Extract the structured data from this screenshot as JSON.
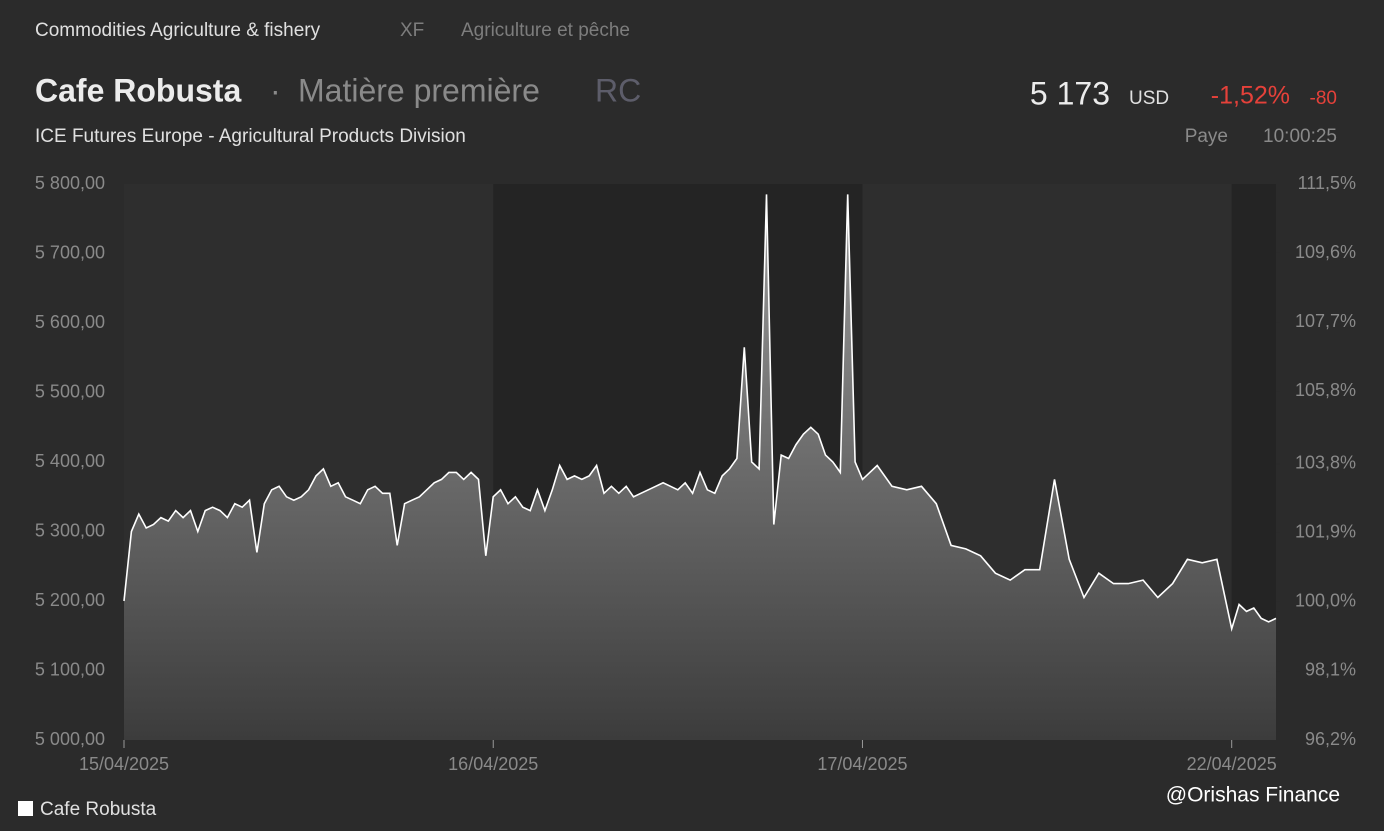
{
  "header": {
    "breadcrumb": [
      "Commodities Agriculture & fishery",
      "XF",
      "Agriculture et pêche"
    ],
    "name": "Cafe Robusta",
    "separator": "·",
    "kind": "Matière première",
    "code": "RC",
    "exchange": "ICE Futures Europe - Agricultural Products Division",
    "price": "5 173",
    "currency": "USD",
    "change_pct": "-1,52%",
    "change": "-80",
    "status": "Paye",
    "time": "10:00:25"
  },
  "watermark": "@Orishas Finance",
  "chart_data": {
    "type": "area",
    "x": [
      0.0,
      0.02,
      0.04,
      0.06,
      0.08,
      0.1,
      0.12,
      0.14,
      0.16,
      0.18,
      0.2,
      0.22,
      0.24,
      0.26,
      0.28,
      0.3,
      0.32,
      0.34,
      0.36,
      0.38,
      0.4,
      0.42,
      0.44,
      0.46,
      0.48,
      0.5,
      0.52,
      0.54,
      0.56,
      0.58,
      0.6,
      0.62,
      0.64,
      0.66,
      0.68,
      0.7,
      0.72,
      0.74,
      0.76,
      0.78,
      0.8,
      0.82,
      0.84,
      0.86,
      0.88,
      0.9,
      0.92,
      0.94,
      0.96,
      0.98,
      1.0,
      1.02,
      1.04,
      1.06,
      1.08,
      1.1,
      1.12,
      1.14,
      1.16,
      1.18,
      1.2,
      1.22,
      1.24,
      1.26,
      1.28,
      1.3,
      1.32,
      1.34,
      1.36,
      1.38,
      1.4,
      1.42,
      1.44,
      1.46,
      1.48,
      1.5,
      1.52,
      1.54,
      1.56,
      1.58,
      1.6,
      1.62,
      1.64,
      1.66,
      1.68,
      1.7,
      1.72,
      1.74,
      1.76,
      1.78,
      1.8,
      1.82,
      1.84,
      1.86,
      1.88,
      1.9,
      1.92,
      1.94,
      1.96,
      1.98,
      2.0,
      2.04,
      2.08,
      2.12,
      2.16,
      2.2,
      2.24,
      2.28,
      2.32,
      2.36,
      2.4,
      2.44,
      2.48,
      2.52,
      2.56,
      2.6,
      2.64,
      2.68,
      2.72,
      2.76,
      2.8,
      2.84,
      2.88,
      2.92,
      2.96,
      3.0,
      3.02,
      3.04,
      3.06,
      3.08,
      3.1,
      3.12
    ],
    "series": [
      {
        "name": "Cafe Robusta",
        "color": "#ffffff",
        "values": [
          5200,
          5300,
          5325,
          5305,
          5310,
          5320,
          5315,
          5330,
          5320,
          5330,
          5300,
          5330,
          5335,
          5330,
          5320,
          5340,
          5335,
          5345,
          5270,
          5340,
          5360,
          5365,
          5350,
          5345,
          5350,
          5360,
          5380,
          5390,
          5365,
          5370,
          5350,
          5345,
          5340,
          5360,
          5365,
          5355,
          5355,
          5280,
          5340,
          5345,
          5350,
          5360,
          5370,
          5375,
          5385,
          5385,
          5375,
          5385,
          5375,
          5265,
          5350,
          5360,
          5340,
          5350,
          5335,
          5330,
          5360,
          5330,
          5360,
          5395,
          5375,
          5380,
          5375,
          5380,
          5395,
          5355,
          5365,
          5355,
          5365,
          5350,
          5355,
          5360,
          5365,
          5370,
          5365,
          5360,
          5370,
          5355,
          5385,
          5360,
          5355,
          5380,
          5390,
          5405,
          5565,
          5400,
          5390,
          5785,
          5310,
          5410,
          5405,
          5425,
          5440,
          5450,
          5440,
          5410,
          5400,
          5385,
          5785,
          5400,
          5375,
          5395,
          5365,
          5360,
          5365,
          5340,
          5280,
          5275,
          5265,
          5240,
          5230,
          5245,
          5245,
          5375,
          5260,
          5205,
          5240,
          5225,
          5225,
          5230,
          5205,
          5225,
          5260,
          5255,
          5260,
          5160,
          5195,
          5185,
          5190,
          5175,
          5170,
          5175
        ]
      }
    ],
    "xlim": [
      0,
      3.12
    ],
    "xticks": [
      {
        "value": 0,
        "label": "15/04/2025"
      },
      {
        "value": 1,
        "label": "16/04/2025"
      },
      {
        "value": 2,
        "label": "17/04/2025"
      },
      {
        "value": 3,
        "label": "22/04/2025"
      }
    ],
    "ylim": [
      5000,
      5800
    ],
    "yticks": [
      {
        "value": 5000,
        "label": "5 000,00"
      },
      {
        "value": 5100,
        "label": "5 100,00"
      },
      {
        "value": 5200,
        "label": "5 200,00"
      },
      {
        "value": 5300,
        "label": "5 300,00"
      },
      {
        "value": 5400,
        "label": "5 400,00"
      },
      {
        "value": 5500,
        "label": "5 500,00"
      },
      {
        "value": 5600,
        "label": "5 600,00"
      },
      {
        "value": 5700,
        "label": "5 700,00"
      },
      {
        "value": 5800,
        "label": "5 800,00"
      }
    ],
    "y2lim": [
      96.2,
      111.5
    ],
    "y2ticks": [
      {
        "value": 96.2,
        "label": "96,2%"
      },
      {
        "value": 98.1,
        "label": "98,1%"
      },
      {
        "value": 100.0,
        "label": "100,0%"
      },
      {
        "value": 101.9,
        "label": "101,9%"
      },
      {
        "value": 103.8,
        "label": "103,8%"
      },
      {
        "value": 105.8,
        "label": "105,8%"
      },
      {
        "value": 107.7,
        "label": "107,7%"
      },
      {
        "value": 109.6,
        "label": "109,6%"
      },
      {
        "value": 111.5,
        "label": "111,5%"
      }
    ],
    "legend": "bottom-left"
  }
}
